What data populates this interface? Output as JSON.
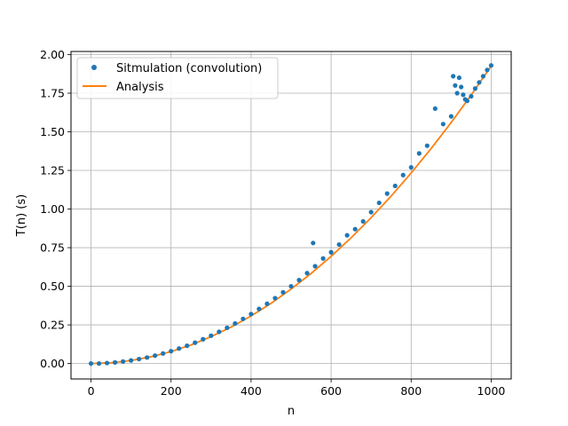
{
  "chart_data": {
    "type": "scatter",
    "xlabel": "n",
    "ylabel": "T(n) (s)",
    "xlim": [
      -50,
      1050
    ],
    "ylim": [
      -0.1,
      2.02
    ],
    "xticks": [
      0,
      200,
      400,
      600,
      800,
      1000
    ],
    "yticks": [
      0.0,
      0.25,
      0.5,
      0.75,
      1.0,
      1.25,
      1.5,
      1.75,
      2.0
    ],
    "xtick_labels": [
      "0",
      "200",
      "400",
      "600",
      "800",
      "1000"
    ],
    "ytick_labels": [
      "0.00",
      "0.25",
      "0.50",
      "0.75",
      "1.00",
      "1.25",
      "1.50",
      "1.75",
      "2.00"
    ],
    "grid": true,
    "legend": {
      "placement": "top-left",
      "entries": [
        {
          "label": "Sitmulation (convolution)",
          "style": "marker"
        },
        {
          "label": "Analysis",
          "style": "line"
        }
      ]
    },
    "series": [
      {
        "name": "Sitmulation (convolution)",
        "kind": "scatter",
        "color": "#1f77b4",
        "x": [
          0,
          20,
          40,
          60,
          80,
          100,
          120,
          140,
          160,
          180,
          200,
          220,
          240,
          260,
          280,
          300,
          320,
          340,
          360,
          380,
          400,
          420,
          440,
          460,
          480,
          500,
          520,
          540,
          555,
          560,
          580,
          600,
          620,
          640,
          660,
          680,
          700,
          720,
          740,
          760,
          780,
          800,
          820,
          840,
          860,
          880,
          900,
          905,
          910,
          915,
          920,
          925,
          930,
          935,
          940,
          950,
          960,
          970,
          980,
          990,
          1000
        ],
        "y": [
          0.0,
          0.0,
          0.003,
          0.007,
          0.013,
          0.02,
          0.029,
          0.039,
          0.051,
          0.065,
          0.08,
          0.097,
          0.115,
          0.135,
          0.157,
          0.18,
          0.205,
          0.231,
          0.259,
          0.289,
          0.32,
          0.353,
          0.387,
          0.423,
          0.461,
          0.5,
          0.54,
          0.585,
          0.78,
          0.63,
          0.68,
          0.72,
          0.77,
          0.83,
          0.87,
          0.92,
          0.98,
          1.04,
          1.1,
          1.15,
          1.22,
          1.27,
          1.36,
          1.41,
          1.65,
          1.55,
          1.6,
          1.86,
          1.8,
          1.75,
          1.85,
          1.79,
          1.74,
          1.71,
          1.7,
          1.73,
          1.78,
          1.82,
          1.86,
          1.9,
          1.93
        ]
      },
      {
        "name": "Analysis",
        "kind": "line",
        "color": "#ff7f0e",
        "x": [
          0,
          50,
          100,
          150,
          200,
          250,
          300,
          350,
          400,
          450,
          500,
          550,
          600,
          650,
          700,
          750,
          800,
          850,
          900,
          950,
          1000
        ],
        "y": [
          0.0,
          0.005,
          0.019,
          0.044,
          0.077,
          0.12,
          0.174,
          0.236,
          0.308,
          0.39,
          0.482,
          0.583,
          0.694,
          0.814,
          0.944,
          1.084,
          1.233,
          1.392,
          1.56,
          1.738,
          1.926
        ]
      }
    ]
  }
}
